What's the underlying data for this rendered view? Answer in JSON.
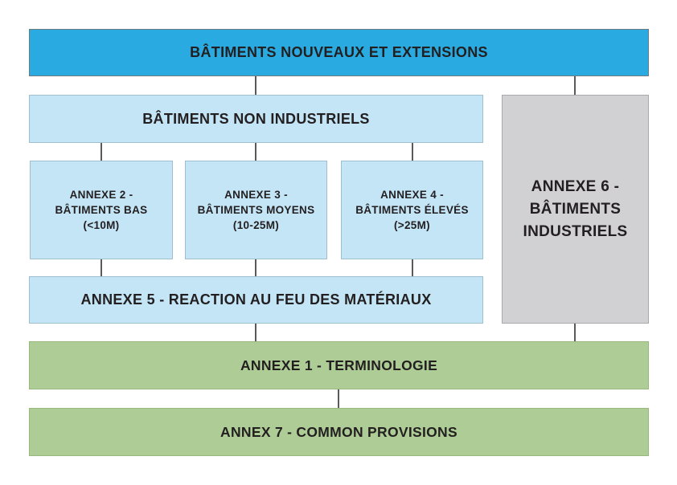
{
  "diagram": {
    "description": "Hierarchy of building fire-safety regulation annexes",
    "nodes": {
      "nouveaux_extensions": {
        "label": "BÂTIMENTS NOUVEAUX ET EXTENSIONS",
        "color": "#29ABE2"
      },
      "non_industriels": {
        "label": "BÂTIMENTS NON INDUSTRIELS",
        "color": "#C3E5F6"
      },
      "annexe2": {
        "label": "ANNEXE 2 -\nBÂTIMENTS BAS\n(<10M)",
        "color": "#C3E5F6"
      },
      "annexe3": {
        "label": "ANNEXE 3 -\nBÂTIMENTS MOYENS\n(10-25M)",
        "color": "#C3E5F6"
      },
      "annexe4": {
        "label": "ANNEXE 4 -\nBÂTIMENTS ÉLEVÉS\n(>25M)",
        "color": "#C3E5F6"
      },
      "annexe6": {
        "label": "ANNEXE 6 -\nBÂTIMENTS\nINDUSTRIELS",
        "color": "#D1D1D3"
      },
      "annexe5": {
        "label": "ANNEXE 5 - REACTION AU FEU DES MATÉRIAUX",
        "color": "#C3E5F6"
      },
      "annexe1": {
        "label": "ANNEXE 1 - TERMINOLOGIE",
        "color": "#AECD96"
      },
      "annex7": {
        "label": "ANNEX 7 - COMMON PROVISIONS",
        "color": "#AECD96"
      }
    },
    "colors": {
      "connector": "#58595B",
      "text": "#231F20",
      "background": "#FFFFFF"
    }
  }
}
